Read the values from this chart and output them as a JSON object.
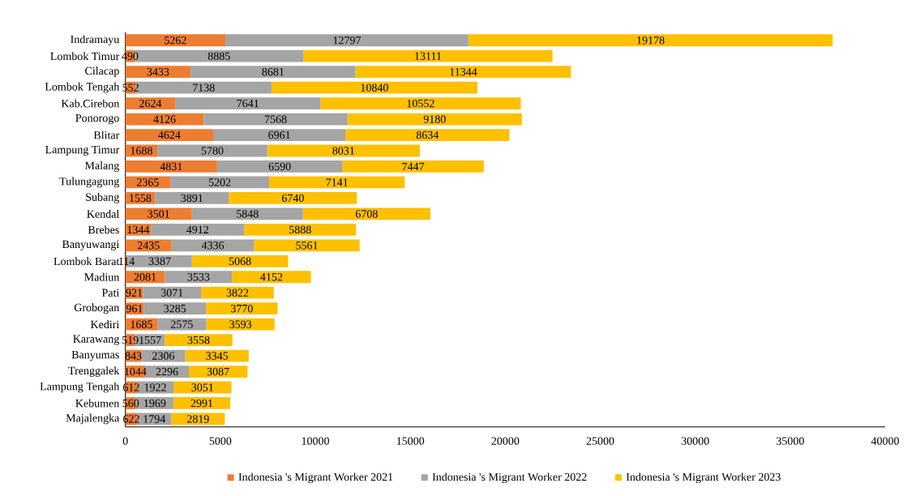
{
  "chart_data": {
    "type": "bar",
    "orientation": "horizontal",
    "stacked": true,
    "data_labels": true,
    "legend": "bottom",
    "categories": [
      "Indramayu",
      "Lombok Timur",
      "Cilacap",
      "Lombok Tengah",
      "Kab.Cirebon",
      "Ponorogo",
      "Blitar",
      "Lampung Timur",
      "Malang",
      "Tulungagung",
      "Subang",
      "Kendal",
      "Brebes",
      "Banyuwangi",
      "Lombok Barat",
      "Madiun",
      "Pati",
      "Grobogan",
      "Kediri",
      "Karawang",
      "Banyumas",
      "Trenggalek",
      "Lampung Tengah",
      "Kebumen",
      "Majalengka"
    ],
    "series": [
      {
        "name": "Indonesia 's Migrant Worker  2021",
        "color": "#ed7d31",
        "values": [
          5262,
          490,
          3433,
          552,
          2624,
          4126,
          4624,
          1688,
          4831,
          2365,
          1558,
          3501,
          1344,
          2435,
          114,
          2081,
          921,
          961,
          1685,
          519,
          843,
          1044,
          612,
          560,
          622
        ]
      },
      {
        "name": "Indonesia 's Migrant Worker  2022",
        "color": "#a5a5a5",
        "values": [
          12797,
          8885,
          8681,
          7138,
          7641,
          7568,
          6961,
          5780,
          6590,
          5202,
          3891,
          5848,
          4912,
          4336,
          3387,
          3533,
          3071,
          3285,
          2575,
          1557,
          2306,
          2296,
          1922,
          1969,
          1794
        ]
      },
      {
        "name": "Indonesia 's Migrant Worker  2023",
        "color": "#ffc000",
        "values": [
          19178,
          13111,
          11344,
          10840,
          10552,
          9180,
          8634,
          8031,
          7447,
          7141,
          6740,
          6708,
          5888,
          5561,
          5068,
          4152,
          3822,
          3770,
          3593,
          3558,
          3345,
          3087,
          3051,
          2991,
          2819
        ]
      }
    ],
    "xlim": [
      0,
      40000
    ],
    "xticks": [
      0,
      5000,
      10000,
      15000,
      20000,
      25000,
      30000,
      35000,
      40000
    ]
  }
}
